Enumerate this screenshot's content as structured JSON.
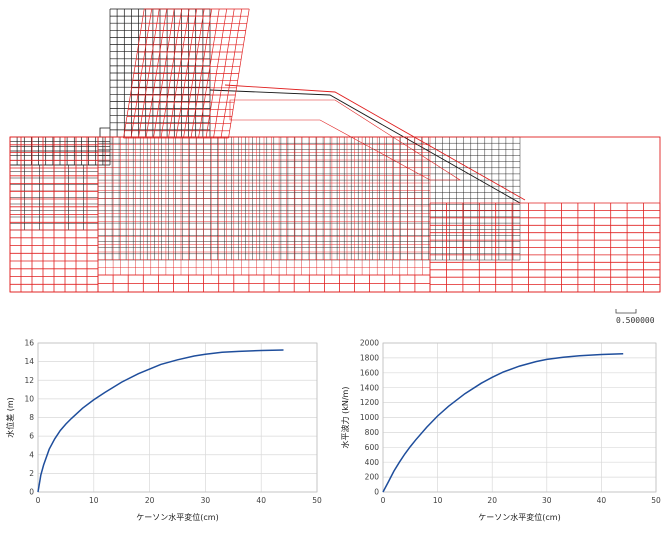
{
  "mesh_figure": {
    "scale_label": "0.500000",
    "colors": {
      "undeformed": "#1a1a1a",
      "deformed": "#e02020"
    }
  },
  "chart_data": [
    {
      "type": "line",
      "title": "",
      "xlabel": "ケーソン水平変位(cm)",
      "ylabel": "水位差 (m)",
      "xlim": [
        0,
        50
      ],
      "ylim": [
        0,
        16
      ],
      "xticks": [
        0,
        10,
        20,
        30,
        40,
        50
      ],
      "yticks": [
        0,
        2,
        4,
        6,
        8,
        10,
        12,
        14,
        16
      ],
      "grid": true,
      "color": "#1f4e9c",
      "x": [
        0,
        0.5,
        1,
        2,
        3,
        4,
        5,
        6,
        8,
        10,
        12,
        15,
        18,
        20,
        22,
        25,
        28,
        30,
        33,
        36,
        40,
        44
      ],
      "y": [
        0,
        1.8,
        2.9,
        4.6,
        5.7,
        6.6,
        7.3,
        7.9,
        9.0,
        9.9,
        10.7,
        11.8,
        12.7,
        13.2,
        13.7,
        14.2,
        14.6,
        14.8,
        15.0,
        15.1,
        15.2,
        15.25
      ]
    },
    {
      "type": "line",
      "title": "",
      "xlabel": "ケーソン水平変位(cm)",
      "ylabel": "水平波力 (kN/m)",
      "xlim": [
        0,
        50
      ],
      "ylim": [
        0,
        2000
      ],
      "xticks": [
        0,
        10,
        20,
        30,
        40,
        50
      ],
      "yticks": [
        0,
        200,
        400,
        600,
        800,
        1000,
        1200,
        1400,
        1600,
        1800,
        2000
      ],
      "grid": true,
      "color": "#1f4e9c",
      "x": [
        0,
        1,
        2,
        3,
        4,
        5,
        6,
        8,
        10,
        12,
        15,
        18,
        20,
        22,
        25,
        28,
        30,
        33,
        36,
        40,
        44
      ],
      "y": [
        0,
        140,
        280,
        400,
        510,
        610,
        700,
        870,
        1020,
        1150,
        1320,
        1460,
        1540,
        1610,
        1690,
        1750,
        1780,
        1810,
        1830,
        1845,
        1855
      ]
    }
  ]
}
